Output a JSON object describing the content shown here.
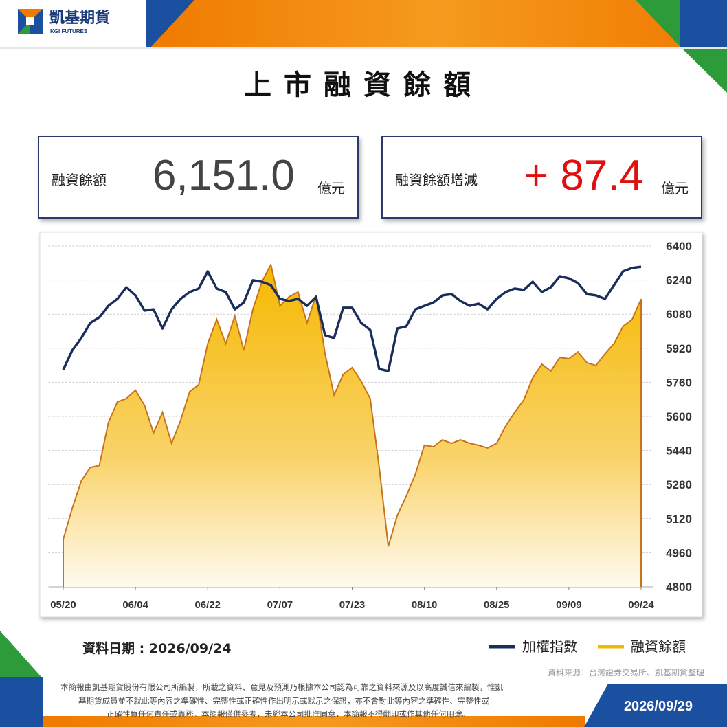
{
  "header": {
    "brand": "凱基期貨",
    "brand_en": "KGI FUTURES"
  },
  "title": "上市融資餘額",
  "cards": [
    {
      "label": "融資餘額",
      "value": "6,151.0",
      "unit": "億元"
    },
    {
      "label": "融資餘額增減",
      "value": "+ 87.4",
      "unit": "億元"
    }
  ],
  "chart_data": {
    "type": "line",
    "categories": [
      "05/20",
      null,
      null,
      null,
      null,
      null,
      null,
      null,
      "06/04",
      null,
      null,
      null,
      null,
      null,
      null,
      null,
      "06/22",
      null,
      null,
      null,
      null,
      null,
      null,
      null,
      "07/07",
      null,
      null,
      null,
      null,
      null,
      null,
      null,
      "07/23",
      null,
      null,
      null,
      null,
      null,
      null,
      null,
      "08/10",
      null,
      null,
      null,
      null,
      null,
      null,
      null,
      "08/25",
      null,
      null,
      null,
      null,
      null,
      null,
      null,
      "09/09",
      null,
      null,
      null,
      null,
      null,
      null,
      null,
      "09/24"
    ],
    "series": [
      {
        "name": "加權指數",
        "color": "#1b2d5b",
        "values": [
          5819,
          5910,
          5968,
          6039,
          6065,
          6119,
          6152,
          6206,
          6168,
          6097,
          6103,
          6013,
          6103,
          6152,
          6184,
          6200,
          6281,
          6200,
          6184,
          6103,
          6135,
          6239,
          6232,
          6216,
          6152,
          6142,
          6152,
          6119,
          6161,
          5981,
          5968,
          6110,
          6110,
          6039,
          6006,
          5823,
          5813,
          6013,
          6023,
          6103,
          6119,
          6135,
          6168,
          6174,
          6142,
          6119,
          6129,
          6103,
          6152,
          6184,
          6200,
          6194,
          6232,
          6184,
          6206,
          6258,
          6248,
          6226,
          6174,
          6168,
          6152,
          6216,
          6281,
          6297,
          6303
        ]
      },
      {
        "name": "融資餘額",
        "color": "#f5b800",
        "values": [
          5023,
          5168,
          5297,
          5361,
          5370,
          5571,
          5668,
          5684,
          5723,
          5652,
          5523,
          5619,
          5474,
          5581,
          5716,
          5748,
          5942,
          6055,
          5942,
          6071,
          5910,
          6103,
          6232,
          6313,
          6119,
          6161,
          6184,
          6039,
          6168,
          5894,
          5700,
          5797,
          5829,
          5765,
          5684,
          5361,
          4990,
          5135,
          5226,
          5329,
          5465,
          5458,
          5490,
          5474,
          5490,
          5474,
          5465,
          5452,
          5474,
          5555,
          5619,
          5677,
          5781,
          5845,
          5813,
          5877,
          5871,
          5903,
          5852,
          5839,
          5894,
          5942,
          6023,
          6055,
          6151
        ],
        "area": true
      }
    ],
    "ylim": [
      4800,
      6400
    ],
    "yticks": [
      4800,
      4960,
      5120,
      5280,
      5440,
      5600,
      5760,
      5920,
      6080,
      6240,
      6400
    ],
    "grid": true
  },
  "footer": {
    "date_label": "資料日期 : 2026/09/24",
    "source": "資料來源：台灣證券交易所、凱基期貨整理",
    "disclaimer": [
      "本簡報由凱基期貨股份有限公司所編製，所載之資料、意見及預測乃根據本公司認為可靠之資料來源及以高度誠信來編製，惟凱",
      "基期貨成員並不就此等內容之準確性、完整性或正確性作出明示或默示之保證，亦不會對此等內容之準確性、完整性或",
      "正確性負任何責任或義務。本簡報僅供參考，未經本公司批准同意，本簡報不得翻印或作其他任何用途。"
    ],
    "publish_date": "2026/09/29"
  }
}
